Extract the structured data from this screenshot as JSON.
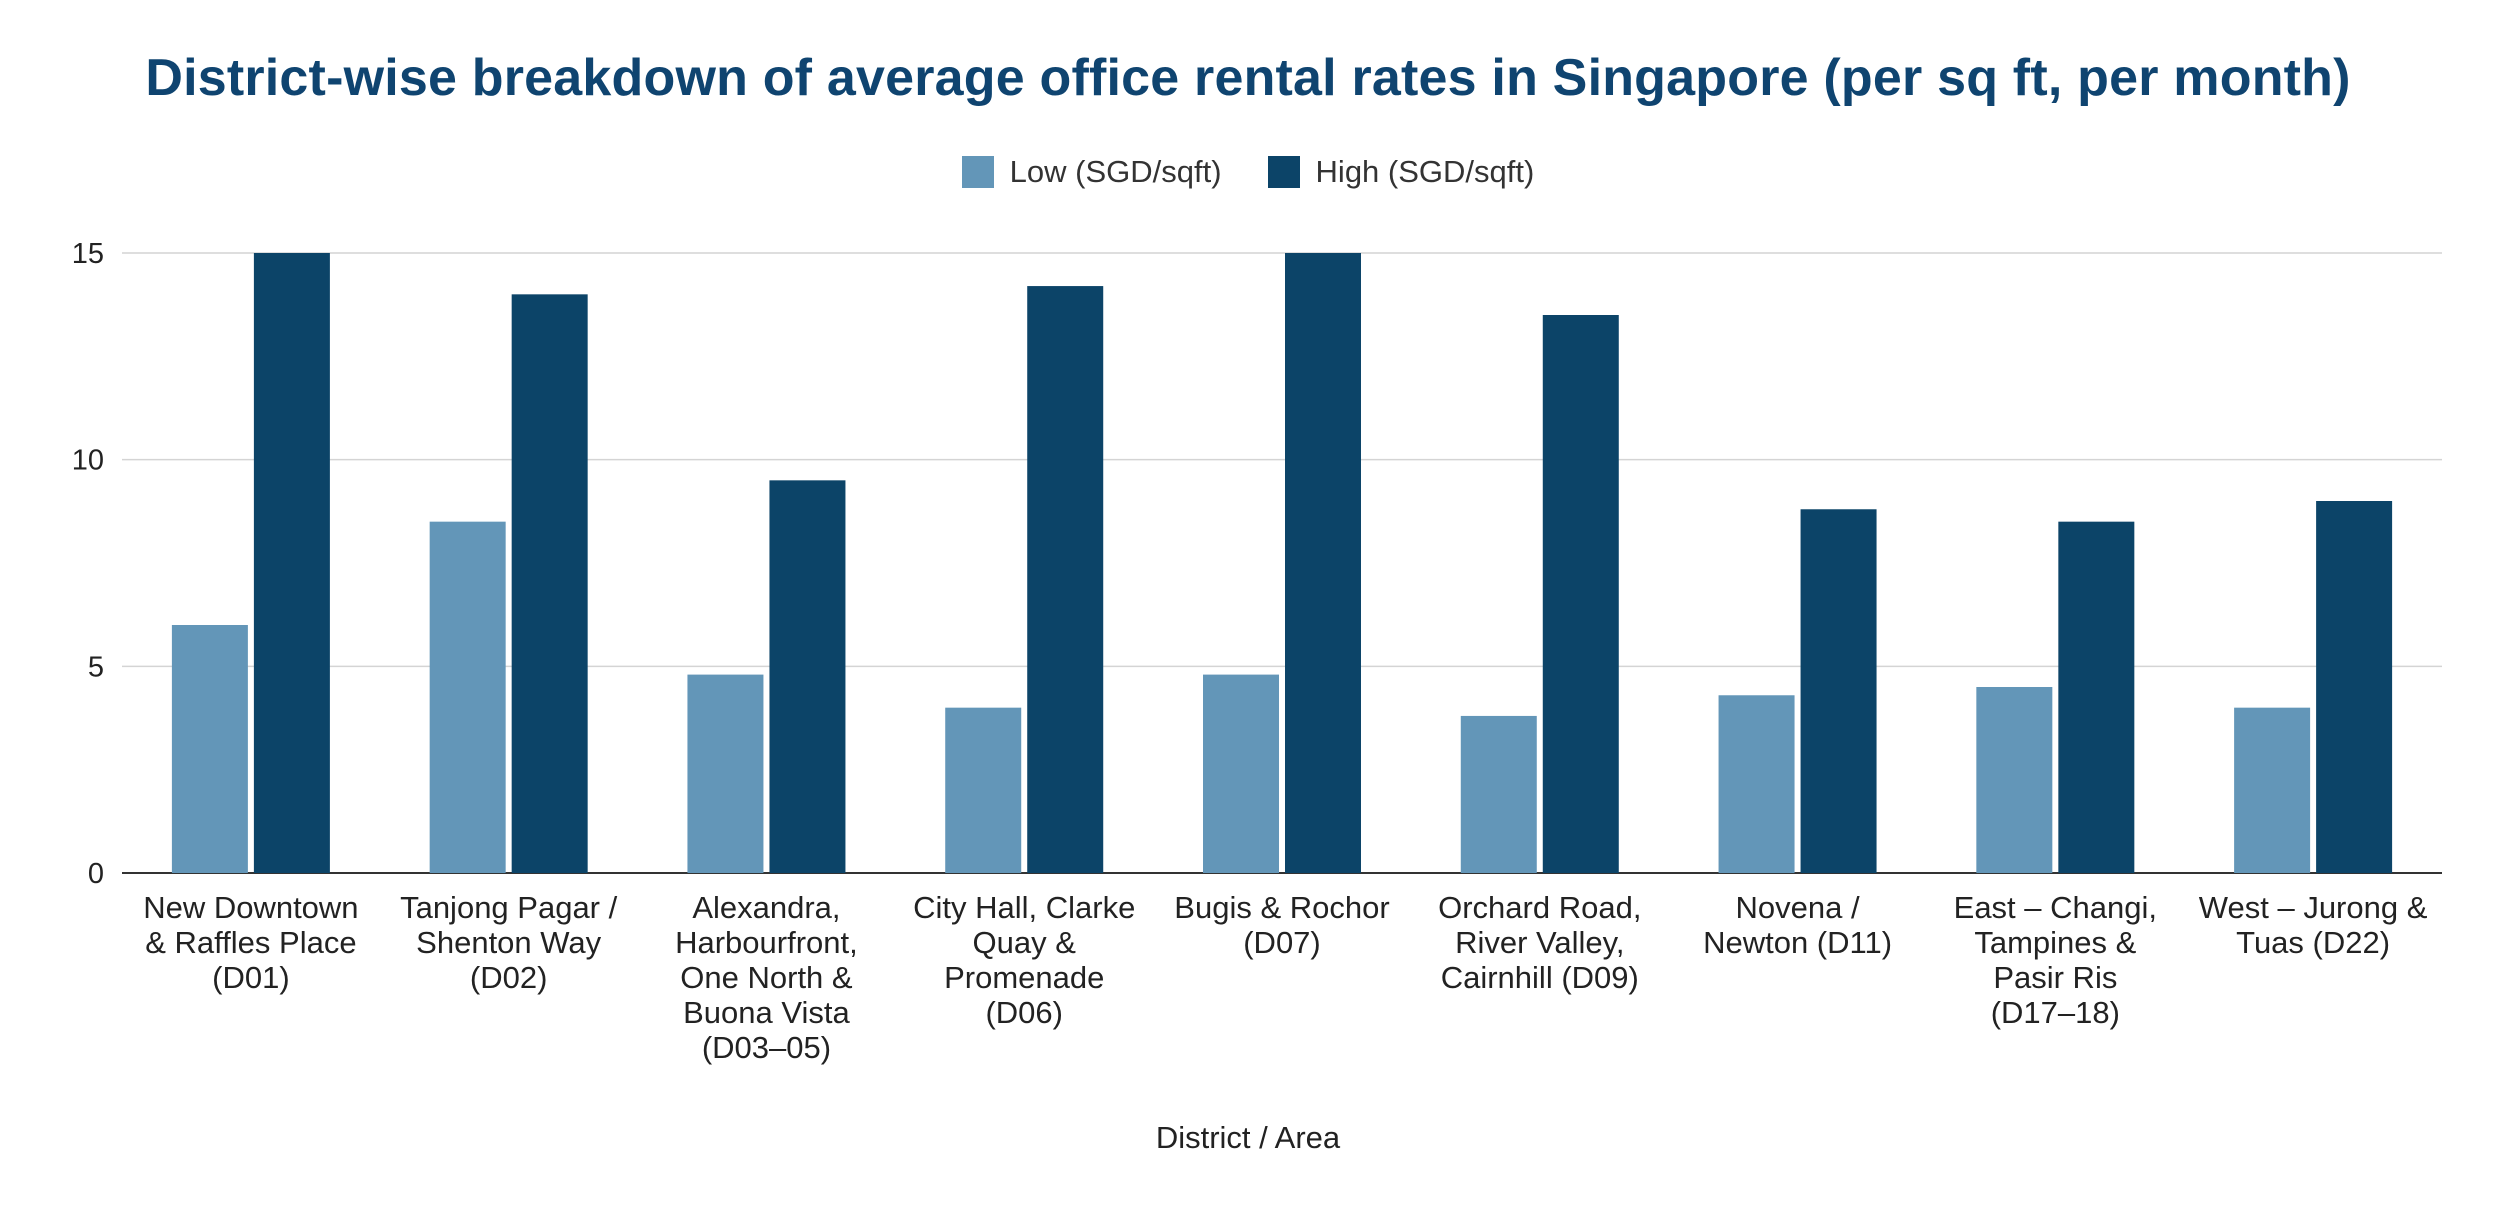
{
  "chart_data": {
    "type": "bar",
    "title": "District-wise breakdown of average office rental rates in Singapore (per sq ft, per month)",
    "xlabel": "District / Area",
    "ylabel": "",
    "ylim": [
      0,
      15
    ],
    "yticks": [
      0,
      5,
      10,
      15
    ],
    "grid": true,
    "legend_position": "top-center",
    "categories": [
      [
        "New Downtown",
        "& Raffles Place",
        "(D01)"
      ],
      [
        "Tanjong Pagar /",
        "Shenton Way",
        "(D02)"
      ],
      [
        "Alexandra,",
        "Harbourfront,",
        "One North &",
        "Buona Vista",
        "(D03–05)"
      ],
      [
        "City Hall, Clarke",
        "Quay &",
        "Promenade",
        "(D06)"
      ],
      [
        "Bugis & Rochor",
        "(D07)"
      ],
      [
        "Orchard Road,",
        "River Valley,",
        "Cairnhill (D09)"
      ],
      [
        "Novena /",
        "Newton (D11)"
      ],
      [
        "East – Changi,",
        "Tampines &",
        "Pasir Ris",
        "(D17–18)"
      ],
      [
        "West – Jurong &",
        "Tuas (D22)"
      ]
    ],
    "series": [
      {
        "name": "Low (SGD/sqft)",
        "color": "#6396b8",
        "values": [
          6.0,
          8.5,
          4.8,
          4.0,
          4.8,
          3.8,
          4.3,
          4.5,
          4.0
        ]
      },
      {
        "name": "High (SGD/sqft)",
        "color": "#0c4468",
        "values": [
          15.0,
          14.0,
          9.5,
          14.2,
          15.0,
          13.5,
          8.8,
          8.5,
          9.0
        ]
      }
    ]
  }
}
